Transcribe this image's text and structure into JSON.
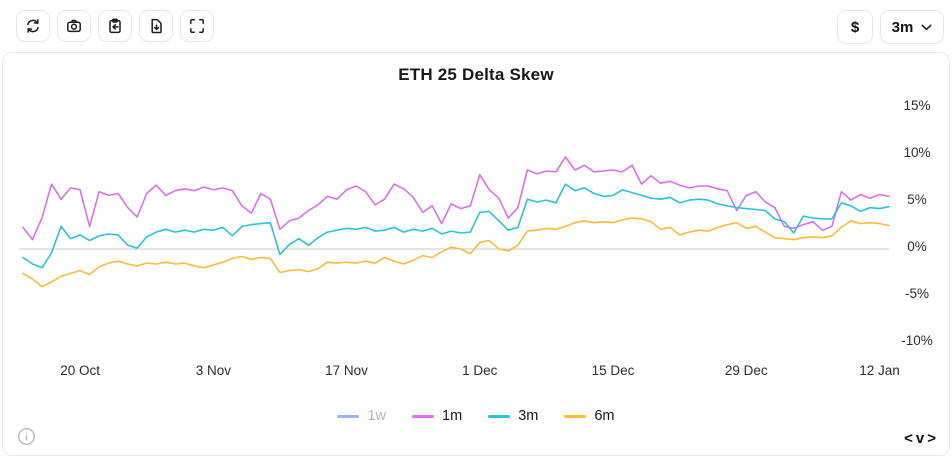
{
  "toolbar": {
    "buttons": [
      {
        "icon": "refresh-icon"
      },
      {
        "icon": "camera-icon"
      },
      {
        "icon": "clipboard-import-icon"
      },
      {
        "icon": "file-download-icon"
      },
      {
        "icon": "fullscreen-icon"
      }
    ],
    "currency_label": "$",
    "timeframe_value": "3m",
    "timeframe_chevron": "chevron-down-icon"
  },
  "chart_data": {
    "type": "line",
    "title": "ETH 25 Delta Skew",
    "ylabel": "",
    "xlabel": "",
    "unit": "%",
    "ylim": [
      -11.4,
      16.3
    ],
    "grid": "zero-line-only",
    "zero_line_color": "#c8c8c8",
    "legend_position": "bottom",
    "y_ticks": [
      15,
      10,
      5,
      0,
      -5,
      -10
    ],
    "y_tick_labels": [
      "15%",
      "10%",
      "5%",
      "0%",
      "-5%",
      "-10%"
    ],
    "x_ticks": [
      {
        "label": "20 Oct",
        "day": 6
      },
      {
        "label": "3 Nov",
        "day": 20
      },
      {
        "label": "17 Nov",
        "day": 34
      },
      {
        "label": "1 Dec",
        "day": 48
      },
      {
        "label": "15 Dec",
        "day": 62
      },
      {
        "label": "29 Dec",
        "day": 76
      },
      {
        "label": "12 Jan",
        "day": 90
      }
    ],
    "series": [
      {
        "name": "1w",
        "color": "#9fb3f2",
        "visible": false,
        "values": []
      },
      {
        "name": "1m",
        "color": "#da70ea",
        "visible": true,
        "values": [
          2.3,
          1.0,
          3.3,
          6.9,
          5.3,
          6.5,
          6.3,
          2.4,
          6.1,
          5.7,
          5.9,
          4.4,
          3.4,
          5.9,
          6.8,
          5.7,
          6.2,
          6.4,
          6.2,
          6.6,
          6.3,
          6.5,
          6.2,
          4.6,
          3.8,
          5.9,
          5.3,
          2.1,
          3.0,
          3.3,
          4.1,
          4.7,
          5.6,
          5.3,
          6.3,
          6.7,
          6.1,
          4.7,
          5.3,
          6.9,
          6.4,
          5.5,
          3.9,
          4.6,
          2.7,
          4.8,
          4.3,
          4.6,
          7.9,
          6.3,
          5.4,
          3.3,
          4.4,
          8.4,
          8.0,
          8.3,
          8.2,
          9.8,
          8.4,
          8.9,
          8.2,
          8.3,
          8.4,
          8.2,
          8.9,
          6.9,
          7.8,
          7.0,
          7.2,
          6.8,
          6.5,
          6.7,
          6.7,
          6.4,
          6.2,
          4.1,
          5.7,
          6.1,
          5.0,
          4.4,
          2.4,
          2.2,
          2.6,
          2.9,
          2.0,
          2.4,
          6.1,
          5.2,
          5.8,
          5.4,
          5.8,
          5.6
        ]
      },
      {
        "name": "3m",
        "color": "#2bc2dc",
        "visible": true,
        "values": [
          -0.9,
          -1.6,
          -2.0,
          -0.4,
          2.4,
          1.1,
          1.5,
          0.9,
          1.4,
          1.6,
          1.5,
          0.4,
          0.1,
          1.3,
          1.8,
          2.1,
          1.8,
          2.0,
          1.8,
          2.1,
          2.0,
          2.3,
          1.4,
          2.4,
          2.6,
          2.7,
          2.8,
          -0.6,
          0.5,
          1.1,
          0.4,
          1.2,
          1.8,
          2.0,
          2.2,
          2.1,
          2.3,
          1.9,
          2.0,
          2.3,
          1.8,
          2.1,
          1.9,
          2.2,
          1.6,
          1.9,
          1.7,
          1.8,
          3.9,
          4.0,
          3.0,
          2.0,
          2.3,
          5.3,
          5.0,
          5.2,
          4.9,
          6.9,
          6.2,
          6.5,
          5.9,
          5.6,
          5.7,
          6.3,
          6.0,
          5.7,
          5.4,
          5.3,
          5.5,
          4.9,
          5.2,
          5.3,
          5.2,
          4.8,
          4.6,
          4.4,
          4.3,
          4.2,
          4.1,
          3.2,
          2.9,
          1.7,
          3.5,
          3.3,
          3.2,
          3.2,
          4.9,
          4.6,
          4.0,
          4.4,
          4.3,
          4.5
        ]
      },
      {
        "name": "6m",
        "color": "#f9bb3c",
        "visible": true,
        "values": [
          -2.6,
          -3.2,
          -4.0,
          -3.5,
          -2.9,
          -2.6,
          -2.3,
          -2.7,
          -1.9,
          -1.5,
          -1.3,
          -1.6,
          -1.8,
          -1.5,
          -1.6,
          -1.4,
          -1.6,
          -1.5,
          -1.8,
          -2.0,
          -1.7,
          -1.4,
          -1.0,
          -0.8,
          -1.1,
          -0.9,
          -1.0,
          -2.5,
          -2.3,
          -2.2,
          -2.4,
          -2.1,
          -1.4,
          -1.5,
          -1.4,
          -1.5,
          -1.3,
          -1.5,
          -0.9,
          -1.3,
          -1.6,
          -1.2,
          -0.7,
          -0.9,
          -0.3,
          0.2,
          0.0,
          -0.5,
          0.7,
          0.9,
          0.0,
          -0.2,
          0.4,
          1.9,
          2.0,
          2.2,
          2.1,
          2.4,
          2.8,
          3.0,
          2.8,
          2.9,
          2.8,
          3.1,
          3.3,
          3.2,
          2.9,
          2.1,
          2.3,
          1.5,
          1.8,
          2.0,
          1.9,
          2.3,
          2.6,
          2.8,
          2.2,
          2.4,
          1.8,
          1.2,
          1.1,
          1.0,
          1.2,
          1.3,
          1.2,
          1.4,
          2.3,
          3.0,
          2.7,
          2.8,
          2.7,
          2.5
        ]
      }
    ]
  },
  "footer": {
    "info_icon": "info-icon",
    "pager": {
      "prev": "<",
      "toggle": "v",
      "next": ">"
    }
  }
}
